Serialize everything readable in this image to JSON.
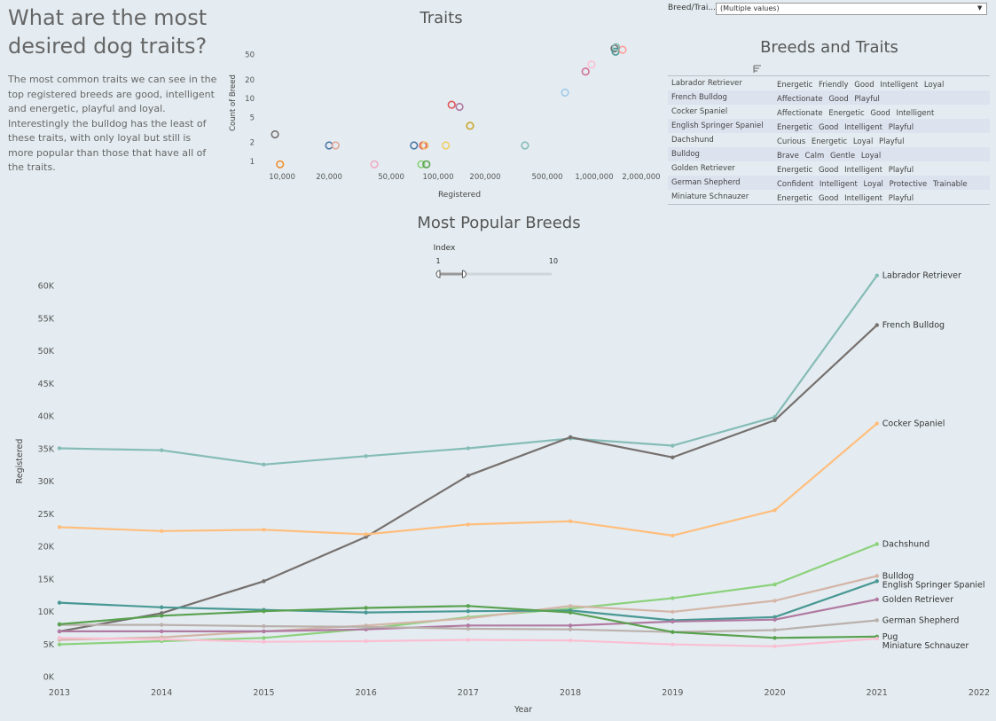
{
  "header": {
    "title": "What are the most desired dog traits?",
    "intro": "The most common traits we can see in the top registered breeds are good, intelligent and energetic, playful and loyal. Interestingly the bulldog has the least of these traits, with only loyal but still is more popular than those that have all of the traits."
  },
  "filter": {
    "label": "Breed/Trai...",
    "value": "(Multiple values)"
  },
  "breeds_table": {
    "title": "Breeds and Traits",
    "rows": [
      {
        "breed": "Labrador Retriever",
        "traits": "Energetic Friendly Good Intelligent Loyal"
      },
      {
        "breed": "French Bulldog",
        "traits": "Affectionate Good Playful"
      },
      {
        "breed": "Cocker Spaniel",
        "traits": "Affectionate Energetic Good Intelligent"
      },
      {
        "breed": "English Springer Spaniel",
        "traits": "Energetic Good Intelligent Playful"
      },
      {
        "breed": "Dachshund",
        "traits": "Curious Energetic Loyal Playful"
      },
      {
        "breed": "Bulldog",
        "traits": "Brave Calm Gentle Loyal"
      },
      {
        "breed": "Golden Retriever",
        "traits": "Energetic Good Intelligent Playful"
      },
      {
        "breed": "German Shepherd",
        "traits": "Confident Intelligent Loyal Protective Trainable"
      },
      {
        "breed": "Miniature Schnauzer",
        "traits": "Energetic Good Intelligent Playful"
      }
    ]
  },
  "index_slider": {
    "label": "Index",
    "min_label": "1",
    "max_label": "10",
    "min": 1,
    "max": 10,
    "low": 1,
    "high": 3
  },
  "chart_data": [
    {
      "type": "scatter",
      "title": "Traits",
      "xlabel": "Registered",
      "ylabel": "Count of Breed",
      "x_scale": "log",
      "y_scale": "log",
      "x_ticks": [
        10000,
        20000,
        50000,
        100000,
        200000,
        500000,
        1000000,
        2000000
      ],
      "x_tick_labels": [
        "10,000",
        "20,000",
        "50,000",
        "100,000",
        "200,000",
        "500,000",
        "1,000,000",
        "2,000,000"
      ],
      "y_ticks": [
        1,
        2,
        5,
        10,
        20,
        50
      ],
      "y_tick_labels": [
        "1",
        "2",
        "5",
        "10",
        "20",
        "50"
      ],
      "points": [
        {
          "x": 9000,
          "y": 2.7,
          "color": "#76706e"
        },
        {
          "x": 9700,
          "y": 0.9,
          "color": "#f28e2b"
        },
        {
          "x": 20000,
          "y": 1.8,
          "color": "#4e79a7"
        },
        {
          "x": 22000,
          "y": 1.8,
          "color": "#e2a898"
        },
        {
          "x": 39000,
          "y": 0.9,
          "color": "#f1a9c4"
        },
        {
          "x": 70000,
          "y": 1.8,
          "color": "#4e79a7"
        },
        {
          "x": 78000,
          "y": 0.9,
          "color": "#8cd17d"
        },
        {
          "x": 80000,
          "y": 1.8,
          "color": "#e15759"
        },
        {
          "x": 82000,
          "y": 1.8,
          "color": "#f4c06c"
        },
        {
          "x": 84000,
          "y": 0.9,
          "color": "#59a14f"
        },
        {
          "x": 112000,
          "y": 1.8,
          "color": "#f1ce63"
        },
        {
          "x": 122000,
          "y": 8.0,
          "color": "#e15759"
        },
        {
          "x": 137000,
          "y": 7.4,
          "color": "#b07aa1"
        },
        {
          "x": 160000,
          "y": 3.7,
          "color": "#c9a62c"
        },
        {
          "x": 360000,
          "y": 1.8,
          "color": "#86bcb6"
        },
        {
          "x": 650000,
          "y": 12.5,
          "color": "#a0cbe8"
        },
        {
          "x": 880000,
          "y": 27,
          "color": "#d37295"
        },
        {
          "x": 960000,
          "y": 35,
          "color": "#fabfd2"
        },
        {
          "x": 1350000,
          "y": 63,
          "color": "#76706e"
        },
        {
          "x": 1370000,
          "y": 56,
          "color": "#499894"
        },
        {
          "x": 1520000,
          "y": 60,
          "color": "#ff9d9a"
        },
        {
          "x": 1380000,
          "y": 66,
          "color": "#86bcb6"
        }
      ]
    },
    {
      "type": "line",
      "title": "Most Popular Breeds",
      "xlabel": "Year",
      "ylabel": "Registered",
      "xlim": [
        2013,
        2022
      ],
      "ylim": [
        -1000,
        65000
      ],
      "x_ticks": [
        2013,
        2014,
        2015,
        2016,
        2017,
        2018,
        2019,
        2020,
        2021,
        2022
      ],
      "y_ticks": [
        0,
        5000,
        10000,
        15000,
        20000,
        25000,
        30000,
        35000,
        40000,
        45000,
        50000,
        55000,
        60000
      ],
      "y_tick_labels": [
        "0K",
        "5K",
        "10K",
        "15K",
        "20K",
        "25K",
        "30K",
        "35K",
        "40K",
        "45K",
        "50K",
        "55K",
        "60K"
      ],
      "x": [
        2013,
        2014,
        2015,
        2016,
        2017,
        2018,
        2019,
        2020,
        2021
      ],
      "series": [
        {
          "name": "Labrador Retriever",
          "color": "#86bcb6",
          "values": [
            35000,
            34700,
            32500,
            33800,
            35000,
            36500,
            35400,
            39800,
            61500
          ]
        },
        {
          "name": "French Bulldog",
          "color": "#76706e",
          "values": [
            6900,
            9700,
            14600,
            21400,
            30800,
            36700,
            33600,
            39300,
            53900
          ]
        },
        {
          "name": "Cocker Spaniel",
          "color": "#ffbe7d",
          "values": [
            22900,
            22300,
            22500,
            21800,
            23300,
            23800,
            21600,
            25500,
            38800
          ]
        },
        {
          "name": "Dachshund",
          "color": "#8cd17d",
          "values": [
            4900,
            5400,
            5900,
            7300,
            9100,
            10400,
            12000,
            14100,
            20300
          ]
        },
        {
          "name": "Bulldog",
          "color": "#d4b5a8",
          "values": [
            5600,
            6000,
            6900,
            7800,
            8900,
            10800,
            9900,
            11600,
            15400
          ]
        },
        {
          "name": "English Springer Spaniel",
          "color": "#499894",
          "values": [
            11300,
            10600,
            10200,
            9800,
            10000,
            10100,
            8600,
            9100,
            14600
          ]
        },
        {
          "name": "Golden Retriever",
          "color": "#b07aa1",
          "values": [
            6900,
            6900,
            6900,
            7200,
            7800,
            7800,
            8400,
            8700,
            11800
          ]
        },
        {
          "name": "German Shepherd",
          "color": "#bab0ac",
          "values": [
            7900,
            7900,
            7700,
            7600,
            7300,
            7200,
            6800,
            7100,
            8600
          ]
        },
        {
          "name": "Pug",
          "color": "#59a14f",
          "values": [
            8000,
            9300,
            10000,
            10500,
            10800,
            9800,
            6800,
            5900,
            6100
          ]
        },
        {
          "name": "Miniature Schnauzer",
          "color": "#fabfd2",
          "values": [
            5900,
            5700,
            5300,
            5400,
            5600,
            5500,
            4900,
            4600,
            5800
          ]
        }
      ]
    }
  ]
}
